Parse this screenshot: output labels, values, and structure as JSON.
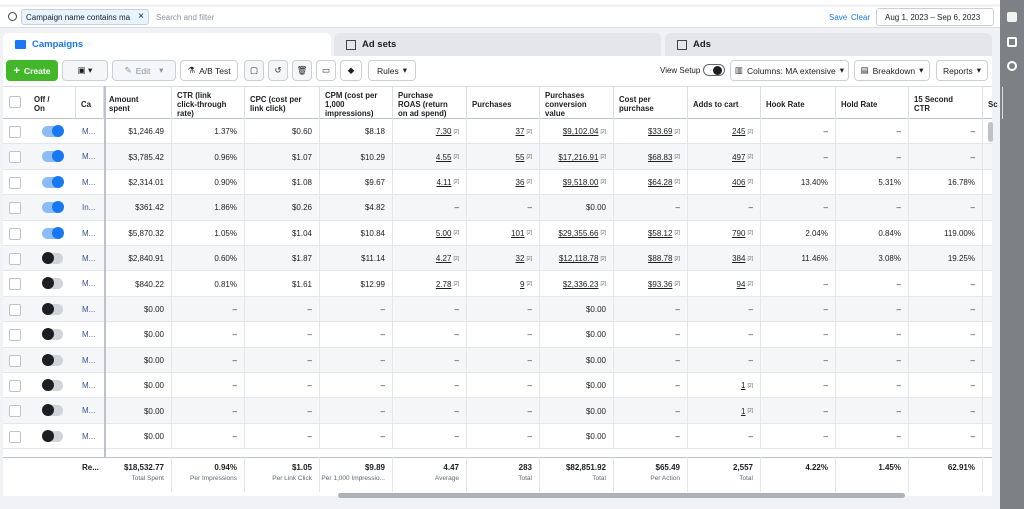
{
  "search": {
    "filter_chip": "Campaign name contains ma",
    "placeholder": "Search and filter",
    "save": "Save",
    "clear": "Clear",
    "date_range": "Aug 1, 2023 – Sep 6, 2023"
  },
  "tabs": [
    "Campaigns",
    "Ad sets",
    "Ads"
  ],
  "toolbar": {
    "create": "Create",
    "edit": "Edit",
    "ab_test": "A/B Test",
    "rules": "Rules",
    "view_setup": "View Setup",
    "columns": "Columns: MA extensive",
    "breakdown": "Breakdown",
    "reports": "Reports"
  },
  "table": {
    "headers": [
      "Off / On",
      "Ca",
      "Amount spent",
      "CTR (link click-through rate)",
      "CPC (cost per link click)",
      "CPM (cost per 1,000 impressions)",
      "Purchase ROAS (return on ad spend)",
      "Purchases",
      "Purchases conversion value",
      "Cost per purchase",
      "Adds to cart",
      "Hook Rate",
      "Hold Rate",
      "15 Second CTR",
      "Sc"
    ],
    "marker": "[2]",
    "rows": [
      {
        "on": true,
        "name": "M...",
        "cells": [
          "$1,246.49",
          "1.37%",
          "$0.60",
          "$8.18",
          "7.30",
          "37",
          "$9,102.04",
          "$33.69",
          "245",
          "–",
          "–",
          "–"
        ]
      },
      {
        "on": true,
        "name": "M...",
        "cells": [
          "$3,785.42",
          "0.96%",
          "$1.07",
          "$10.29",
          "4.55",
          "55",
          "$17,216.91",
          "$68.83",
          "497",
          "–",
          "–",
          "–"
        ]
      },
      {
        "on": true,
        "name": "M...",
        "cells": [
          "$2,314.01",
          "0.90%",
          "$1.08",
          "$9.67",
          "4.11",
          "36",
          "$9,518.00",
          "$64.28",
          "406",
          "13.40%",
          "5.31%",
          "16.78%"
        ]
      },
      {
        "on": true,
        "name": "In...",
        "cells": [
          "$361.42",
          "1.86%",
          "$0.26",
          "$4.82",
          "–",
          "–",
          "$0.00",
          "–",
          "–",
          "–",
          "–",
          "–"
        ]
      },
      {
        "on": true,
        "name": "M...",
        "cells": [
          "$5,870.32",
          "1.05%",
          "$1.04",
          "$10.84",
          "5.00",
          "101",
          "$29,355.66",
          "$58.12",
          "790",
          "2.04%",
          "0.84%",
          "119.00%"
        ]
      },
      {
        "on": false,
        "name": "M...",
        "cells": [
          "$2,840.91",
          "0.60%",
          "$1.87",
          "$11.14",
          "4.27",
          "32",
          "$12,118.78",
          "$88.78",
          "384",
          "11.46%",
          "3.08%",
          "19.25%"
        ]
      },
      {
        "on": false,
        "name": "M...",
        "cells": [
          "$840.22",
          "0.81%",
          "$1.61",
          "$12.99",
          "2.78",
          "9",
          "$2,336.23",
          "$93.36",
          "94",
          "–",
          "–",
          "–"
        ]
      },
      {
        "on": false,
        "name": "M...",
        "cells": [
          "$0.00",
          "–",
          "–",
          "–",
          "–",
          "–",
          "$0.00",
          "–",
          "–",
          "–",
          "–",
          "–"
        ]
      },
      {
        "on": false,
        "name": "M...",
        "cells": [
          "$0.00",
          "–",
          "–",
          "–",
          "–",
          "–",
          "$0.00",
          "–",
          "–",
          "–",
          "–",
          "–"
        ]
      },
      {
        "on": false,
        "name": "M...",
        "cells": [
          "$0.00",
          "–",
          "–",
          "–",
          "–",
          "–",
          "$0.00",
          "–",
          "–",
          "–",
          "–",
          "–"
        ]
      },
      {
        "on": false,
        "name": "M...",
        "cells": [
          "$0.00",
          "–",
          "–",
          "–",
          "–",
          "–",
          "$0.00",
          "–",
          "1",
          "–",
          "–",
          "–"
        ]
      },
      {
        "on": false,
        "name": "M...",
        "cells": [
          "$0.00",
          "–",
          "–",
          "–",
          "–",
          "–",
          "$0.00",
          "–",
          "1",
          "–",
          "–",
          "–"
        ]
      },
      {
        "on": false,
        "name": "M...",
        "cells": [
          "$0.00",
          "–",
          "–",
          "–",
          "–",
          "–",
          "$0.00",
          "–",
          "–",
          "–",
          "–",
          "–"
        ]
      }
    ],
    "footer": {
      "label": "Re...",
      "cells": [
        {
          "value": "$18,532.77",
          "sub": "Total Spent"
        },
        {
          "value": "0.94%",
          "sub": "Per Impressions"
        },
        {
          "value": "$1.05",
          "sub": "Per Link Click"
        },
        {
          "value": "$9.89",
          "sub": "Per 1,000 Impressio..."
        },
        {
          "value": "4.47",
          "sub": "Average"
        },
        {
          "value": "283",
          "sub": "Total"
        },
        {
          "value": "$82,851.92",
          "sub": "Total"
        },
        {
          "value": "$65.49",
          "sub": "Per Action"
        },
        {
          "value": "2,557",
          "sub": "Total"
        },
        {
          "value": "4.22%"
        },
        {
          "value": "1.45%"
        },
        {
          "value": "62.91%"
        }
      ]
    }
  }
}
